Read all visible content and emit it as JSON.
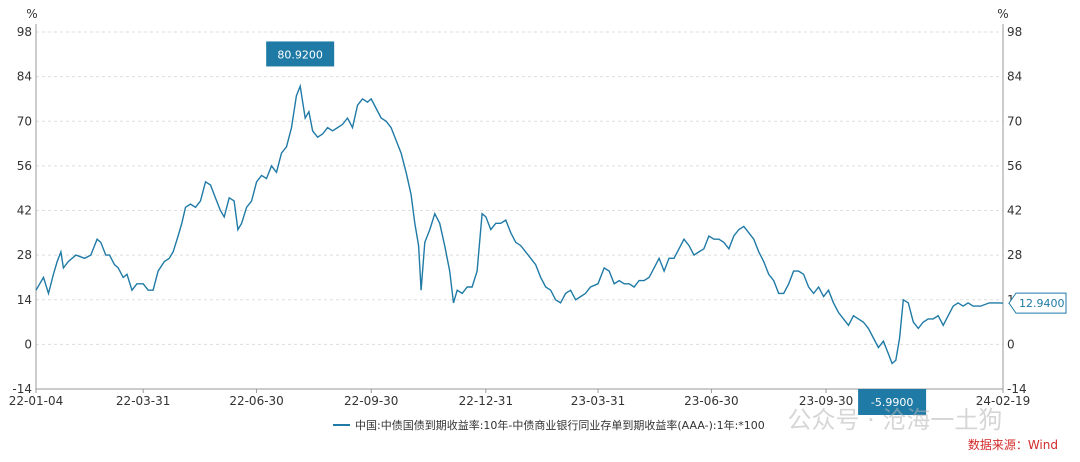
{
  "chart_data": {
    "type": "line",
    "y_unit_left": "%",
    "y_unit_right": "%",
    "ylim": [
      -14,
      98
    ],
    "yticks": [
      -14,
      0,
      14,
      28,
      42,
      56,
      70,
      84,
      98
    ],
    "x_tick_labels": [
      "22-01-04",
      "22-03-31",
      "22-06-30",
      "22-09-30",
      "22-12-31",
      "23-03-31",
      "23-06-30",
      "23-09-30",
      "24-02-19"
    ],
    "x_tick_dates": [
      "2022-01-04",
      "2022-03-31",
      "2022-06-30",
      "2022-09-30",
      "2022-12-31",
      "2023-03-31",
      "2023-06-30",
      "2023-09-30",
      "2024-02-19"
    ],
    "x_range": [
      "2022-01-04",
      "2024-02-19"
    ],
    "grid": "horizontal-dashed",
    "series": [
      {
        "name": "中国:中债国债到期收益率:10年-中债商业银行同业存单到期收益率(AAA-):1年:*100",
        "color": "#1f7aa6",
        "points": [
          [
            "2022-01-04",
            17
          ],
          [
            "2022-01-10",
            21
          ],
          [
            "2022-01-14",
            16
          ],
          [
            "2022-01-18",
            22
          ],
          [
            "2022-01-21",
            26
          ],
          [
            "2022-01-24",
            29
          ],
          [
            "2022-01-26",
            24
          ],
          [
            "2022-01-30",
            26
          ],
          [
            "2022-02-05",
            28
          ],
          [
            "2022-02-12",
            27
          ],
          [
            "2022-02-17",
            28
          ],
          [
            "2022-02-22",
            33
          ],
          [
            "2022-02-25",
            32
          ],
          [
            "2022-03-01",
            28
          ],
          [
            "2022-03-04",
            28
          ],
          [
            "2022-03-08",
            25
          ],
          [
            "2022-03-11",
            24
          ],
          [
            "2022-03-15",
            21
          ],
          [
            "2022-03-18",
            22
          ],
          [
            "2022-03-22",
            17
          ],
          [
            "2022-03-26",
            19
          ],
          [
            "2022-03-31",
            19
          ],
          [
            "2022-04-04",
            17
          ],
          [
            "2022-04-08",
            17
          ],
          [
            "2022-04-12",
            23
          ],
          [
            "2022-04-17",
            26
          ],
          [
            "2022-04-21",
            27
          ],
          [
            "2022-04-24",
            29
          ],
          [
            "2022-04-28",
            34
          ],
          [
            "2022-05-01",
            38
          ],
          [
            "2022-05-04",
            43
          ],
          [
            "2022-05-08",
            44
          ],
          [
            "2022-05-12",
            43
          ],
          [
            "2022-05-16",
            45
          ],
          [
            "2022-05-20",
            51
          ],
          [
            "2022-05-24",
            50
          ],
          [
            "2022-05-28",
            46
          ],
          [
            "2022-06-01",
            42
          ],
          [
            "2022-06-04",
            40
          ],
          [
            "2022-06-08",
            46
          ],
          [
            "2022-06-12",
            45
          ],
          [
            "2022-06-15",
            36
          ],
          [
            "2022-06-18",
            38
          ],
          [
            "2022-06-22",
            43
          ],
          [
            "2022-06-26",
            45
          ],
          [
            "2022-06-30",
            51
          ],
          [
            "2022-07-04",
            53
          ],
          [
            "2022-07-08",
            52
          ],
          [
            "2022-07-12",
            56
          ],
          [
            "2022-07-16",
            54
          ],
          [
            "2022-07-20",
            60
          ],
          [
            "2022-07-24",
            62
          ],
          [
            "2022-07-28",
            68
          ],
          [
            "2022-08-01",
            78
          ],
          [
            "2022-08-04",
            81
          ],
          [
            "2022-08-08",
            71
          ],
          [
            "2022-08-11",
            73
          ],
          [
            "2022-08-14",
            67
          ],
          [
            "2022-08-18",
            65
          ],
          [
            "2022-08-22",
            66
          ],
          [
            "2022-08-26",
            68
          ],
          [
            "2022-08-30",
            67
          ],
          [
            "2022-09-03",
            68
          ],
          [
            "2022-09-07",
            69
          ],
          [
            "2022-09-11",
            71
          ],
          [
            "2022-09-15",
            68
          ],
          [
            "2022-09-19",
            75
          ],
          [
            "2022-09-23",
            77
          ],
          [
            "2022-09-27",
            76
          ],
          [
            "2022-09-30",
            77
          ],
          [
            "2022-10-04",
            74
          ],
          [
            "2022-10-08",
            71
          ],
          [
            "2022-10-12",
            70
          ],
          [
            "2022-10-16",
            68
          ],
          [
            "2022-10-20",
            64
          ],
          [
            "2022-10-24",
            60
          ],
          [
            "2022-10-28",
            54
          ],
          [
            "2022-11-01",
            47
          ],
          [
            "2022-11-04",
            38
          ],
          [
            "2022-11-07",
            31
          ],
          [
            "2022-11-09",
            17
          ],
          [
            "2022-11-12",
            32
          ],
          [
            "2022-11-16",
            36
          ],
          [
            "2022-11-20",
            41
          ],
          [
            "2022-11-24",
            38
          ],
          [
            "2022-11-28",
            31
          ],
          [
            "2022-12-02",
            23
          ],
          [
            "2022-12-05",
            13
          ],
          [
            "2022-12-08",
            17
          ],
          [
            "2022-12-12",
            16
          ],
          [
            "2022-12-16",
            18
          ],
          [
            "2022-12-20",
            18
          ],
          [
            "2022-12-24",
            23
          ],
          [
            "2022-12-28",
            41
          ],
          [
            "2022-12-31",
            40
          ],
          [
            "2023-01-04",
            36
          ],
          [
            "2023-01-08",
            38
          ],
          [
            "2023-01-12",
            38
          ],
          [
            "2023-01-16",
            39
          ],
          [
            "2023-01-20",
            35
          ],
          [
            "2023-01-24",
            32
          ],
          [
            "2023-01-28",
            31
          ],
          [
            "2023-02-01",
            29
          ],
          [
            "2023-02-05",
            27
          ],
          [
            "2023-02-09",
            25
          ],
          [
            "2023-02-13",
            21
          ],
          [
            "2023-02-17",
            18
          ],
          [
            "2023-02-21",
            17
          ],
          [
            "2023-02-25",
            14
          ],
          [
            "2023-03-01",
            13
          ],
          [
            "2023-03-05",
            16
          ],
          [
            "2023-03-09",
            17
          ],
          [
            "2023-03-13",
            14
          ],
          [
            "2023-03-17",
            15
          ],
          [
            "2023-03-21",
            16
          ],
          [
            "2023-03-25",
            18
          ],
          [
            "2023-03-31",
            19
          ],
          [
            "2023-04-05",
            24
          ],
          [
            "2023-04-09",
            23
          ],
          [
            "2023-04-13",
            19
          ],
          [
            "2023-04-17",
            20
          ],
          [
            "2023-04-21",
            19
          ],
          [
            "2023-04-25",
            19
          ],
          [
            "2023-04-29",
            18
          ],
          [
            "2023-05-03",
            20
          ],
          [
            "2023-05-07",
            20
          ],
          [
            "2023-05-11",
            21
          ],
          [
            "2023-05-15",
            24
          ],
          [
            "2023-05-19",
            27
          ],
          [
            "2023-05-23",
            23
          ],
          [
            "2023-05-27",
            27
          ],
          [
            "2023-05-31",
            27
          ],
          [
            "2023-06-04",
            30
          ],
          [
            "2023-06-08",
            33
          ],
          [
            "2023-06-12",
            31
          ],
          [
            "2023-06-16",
            28
          ],
          [
            "2023-06-20",
            29
          ],
          [
            "2023-06-24",
            30
          ],
          [
            "2023-06-28",
            34
          ],
          [
            "2023-07-02",
            33
          ],
          [
            "2023-07-06",
            33
          ],
          [
            "2023-07-10",
            32
          ],
          [
            "2023-07-14",
            30
          ],
          [
            "2023-07-18",
            34
          ],
          [
            "2023-07-22",
            36
          ],
          [
            "2023-07-26",
            37
          ],
          [
            "2023-07-30",
            35
          ],
          [
            "2023-08-03",
            33
          ],
          [
            "2023-08-07",
            29
          ],
          [
            "2023-08-11",
            26
          ],
          [
            "2023-08-15",
            22
          ],
          [
            "2023-08-19",
            20
          ],
          [
            "2023-08-23",
            16
          ],
          [
            "2023-08-27",
            16
          ],
          [
            "2023-08-31",
            19
          ],
          [
            "2023-09-04",
            23
          ],
          [
            "2023-09-08",
            23
          ],
          [
            "2023-09-12",
            22
          ],
          [
            "2023-09-16",
            18
          ],
          [
            "2023-09-20",
            16
          ],
          [
            "2023-09-24",
            18
          ],
          [
            "2023-09-28",
            15
          ],
          [
            "2023-10-02",
            17
          ],
          [
            "2023-10-06",
            13
          ],
          [
            "2023-10-10",
            10
          ],
          [
            "2023-10-14",
            8
          ],
          [
            "2023-10-18",
            6
          ],
          [
            "2023-10-22",
            9
          ],
          [
            "2023-10-26",
            8
          ],
          [
            "2023-10-30",
            7
          ],
          [
            "2023-11-03",
            5
          ],
          [
            "2023-11-07",
            2
          ],
          [
            "2023-11-11",
            -1
          ],
          [
            "2023-11-15",
            1
          ],
          [
            "2023-11-19",
            -3
          ],
          [
            "2023-11-22",
            -6
          ],
          [
            "2023-11-25",
            -5
          ],
          [
            "2023-11-28",
            2
          ],
          [
            "2023-12-01",
            14
          ],
          [
            "2023-12-05",
            13
          ],
          [
            "2023-12-09",
            7
          ],
          [
            "2023-12-13",
            5
          ],
          [
            "2023-12-17",
            7
          ],
          [
            "2023-12-21",
            8
          ],
          [
            "2023-12-25",
            8
          ],
          [
            "2023-12-29",
            9
          ],
          [
            "2024-01-02",
            6
          ],
          [
            "2024-01-06",
            9
          ],
          [
            "2024-01-10",
            12
          ],
          [
            "2024-01-14",
            13
          ],
          [
            "2024-01-18",
            12
          ],
          [
            "2024-01-22",
            13
          ],
          [
            "2024-01-26",
            12
          ],
          [
            "2024-02-01",
            12
          ],
          [
            "2024-02-08",
            13
          ],
          [
            "2024-02-14",
            13
          ],
          [
            "2024-02-19",
            12.94
          ]
        ]
      }
    ],
    "annotations": {
      "max": {
        "date": "2022-08-04",
        "value": 80.92,
        "label": "80.9200"
      },
      "min": {
        "date": "2023-11-22",
        "value": -5.99,
        "label": "-5.9900"
      },
      "last": {
        "date": "2024-02-19",
        "value": 12.94,
        "label": "12.9400"
      }
    },
    "legend": {
      "placement": "bottom-center",
      "label": "中国:中债国债到期收益率:10年-中债商业银行同业存单到期收益率(AAA-):1年:*100"
    }
  },
  "source_label": "数据来源：Wind",
  "watermark": "公众号 · 沧海一土狗"
}
